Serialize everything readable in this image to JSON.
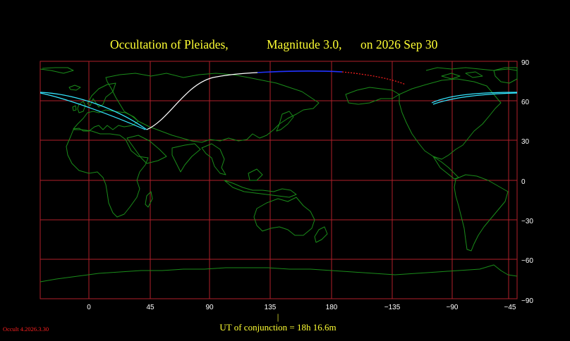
{
  "header": {
    "title_object": "Occultation  of  Pleiades,",
    "title_magnitude": "Magnitude 3.0,",
    "title_date": "on  2026 Sep 30"
  },
  "axes": {
    "x_ticks": [
      "0",
      "45",
      "90",
      "135",
      "180",
      "−135",
      "−90",
      "−45"
    ],
    "y_ticks": [
      "90",
      "60",
      "30",
      "0",
      "−30",
      "−60",
      "−90"
    ]
  },
  "footer": {
    "conjunction_marker": "|",
    "conjunction_text": "UT of conjunction = 18h 16.6m"
  },
  "credit": "Occult 4.2026.3.30",
  "colors": {
    "background": "#000000",
    "grid": "#b0202a",
    "land": "#1a8c1a",
    "title": "#ffff33",
    "ticks": "#ffffff",
    "path_bright_limb": "#33e6ff",
    "path_night": "#ffffff",
    "path_day": "#2233ff",
    "path_below_horizon": "#ff2020"
  }
}
